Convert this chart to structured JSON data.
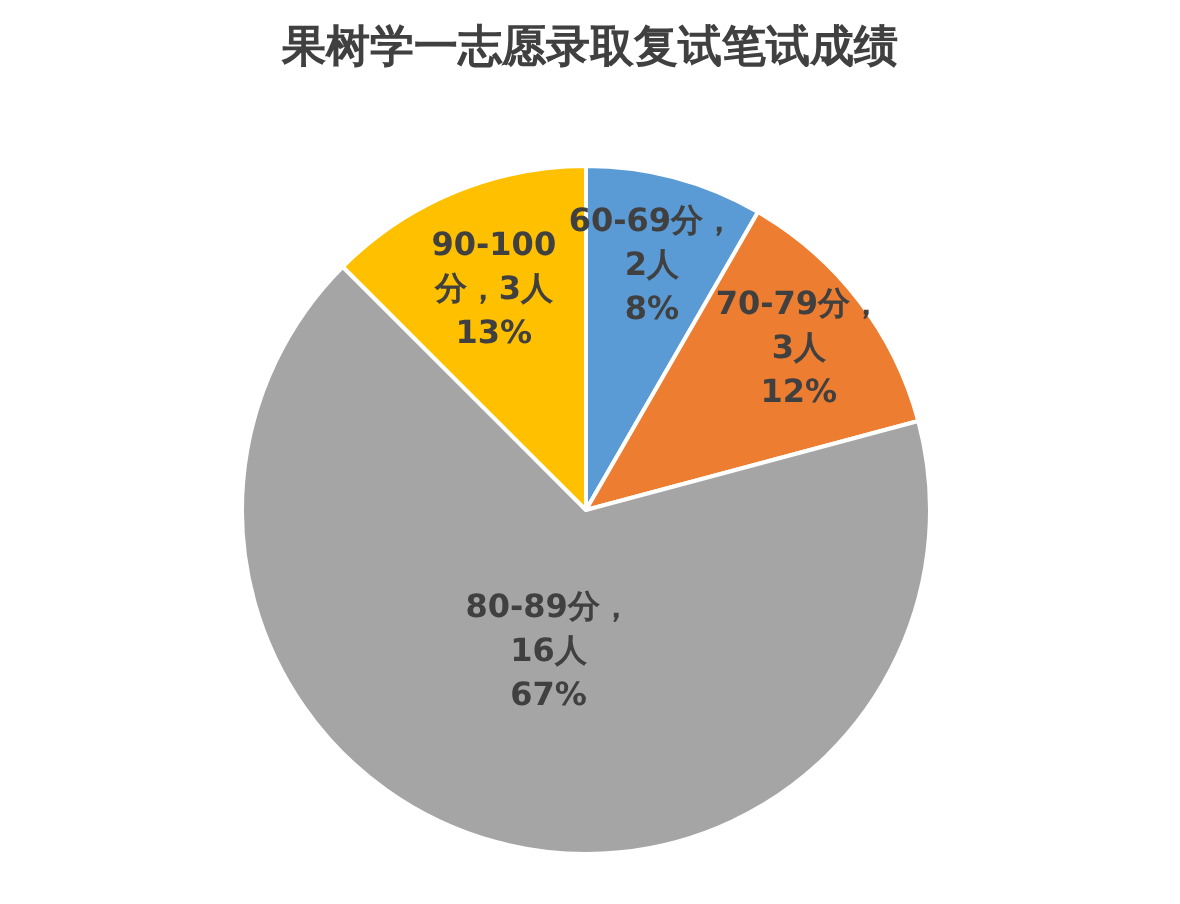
{
  "chart_data": {
    "type": "pie",
    "title": "果树学一志愿录取复试笔试成绩",
    "categories": [
      "60-69分",
      "70-79分",
      "80-89分",
      "90-100分"
    ],
    "values": [
      2,
      3,
      16,
      3
    ],
    "colors": [
      "#5b9bd5",
      "#ed7d31",
      "#a5a5a5",
      "#ffc000"
    ],
    "value_labels": [
      "，\n2人\n8%",
      "，\n3人\n12%",
      "，\n16人\n67%",
      "，3人\n13%"
    ],
    "legend": false
  }
}
